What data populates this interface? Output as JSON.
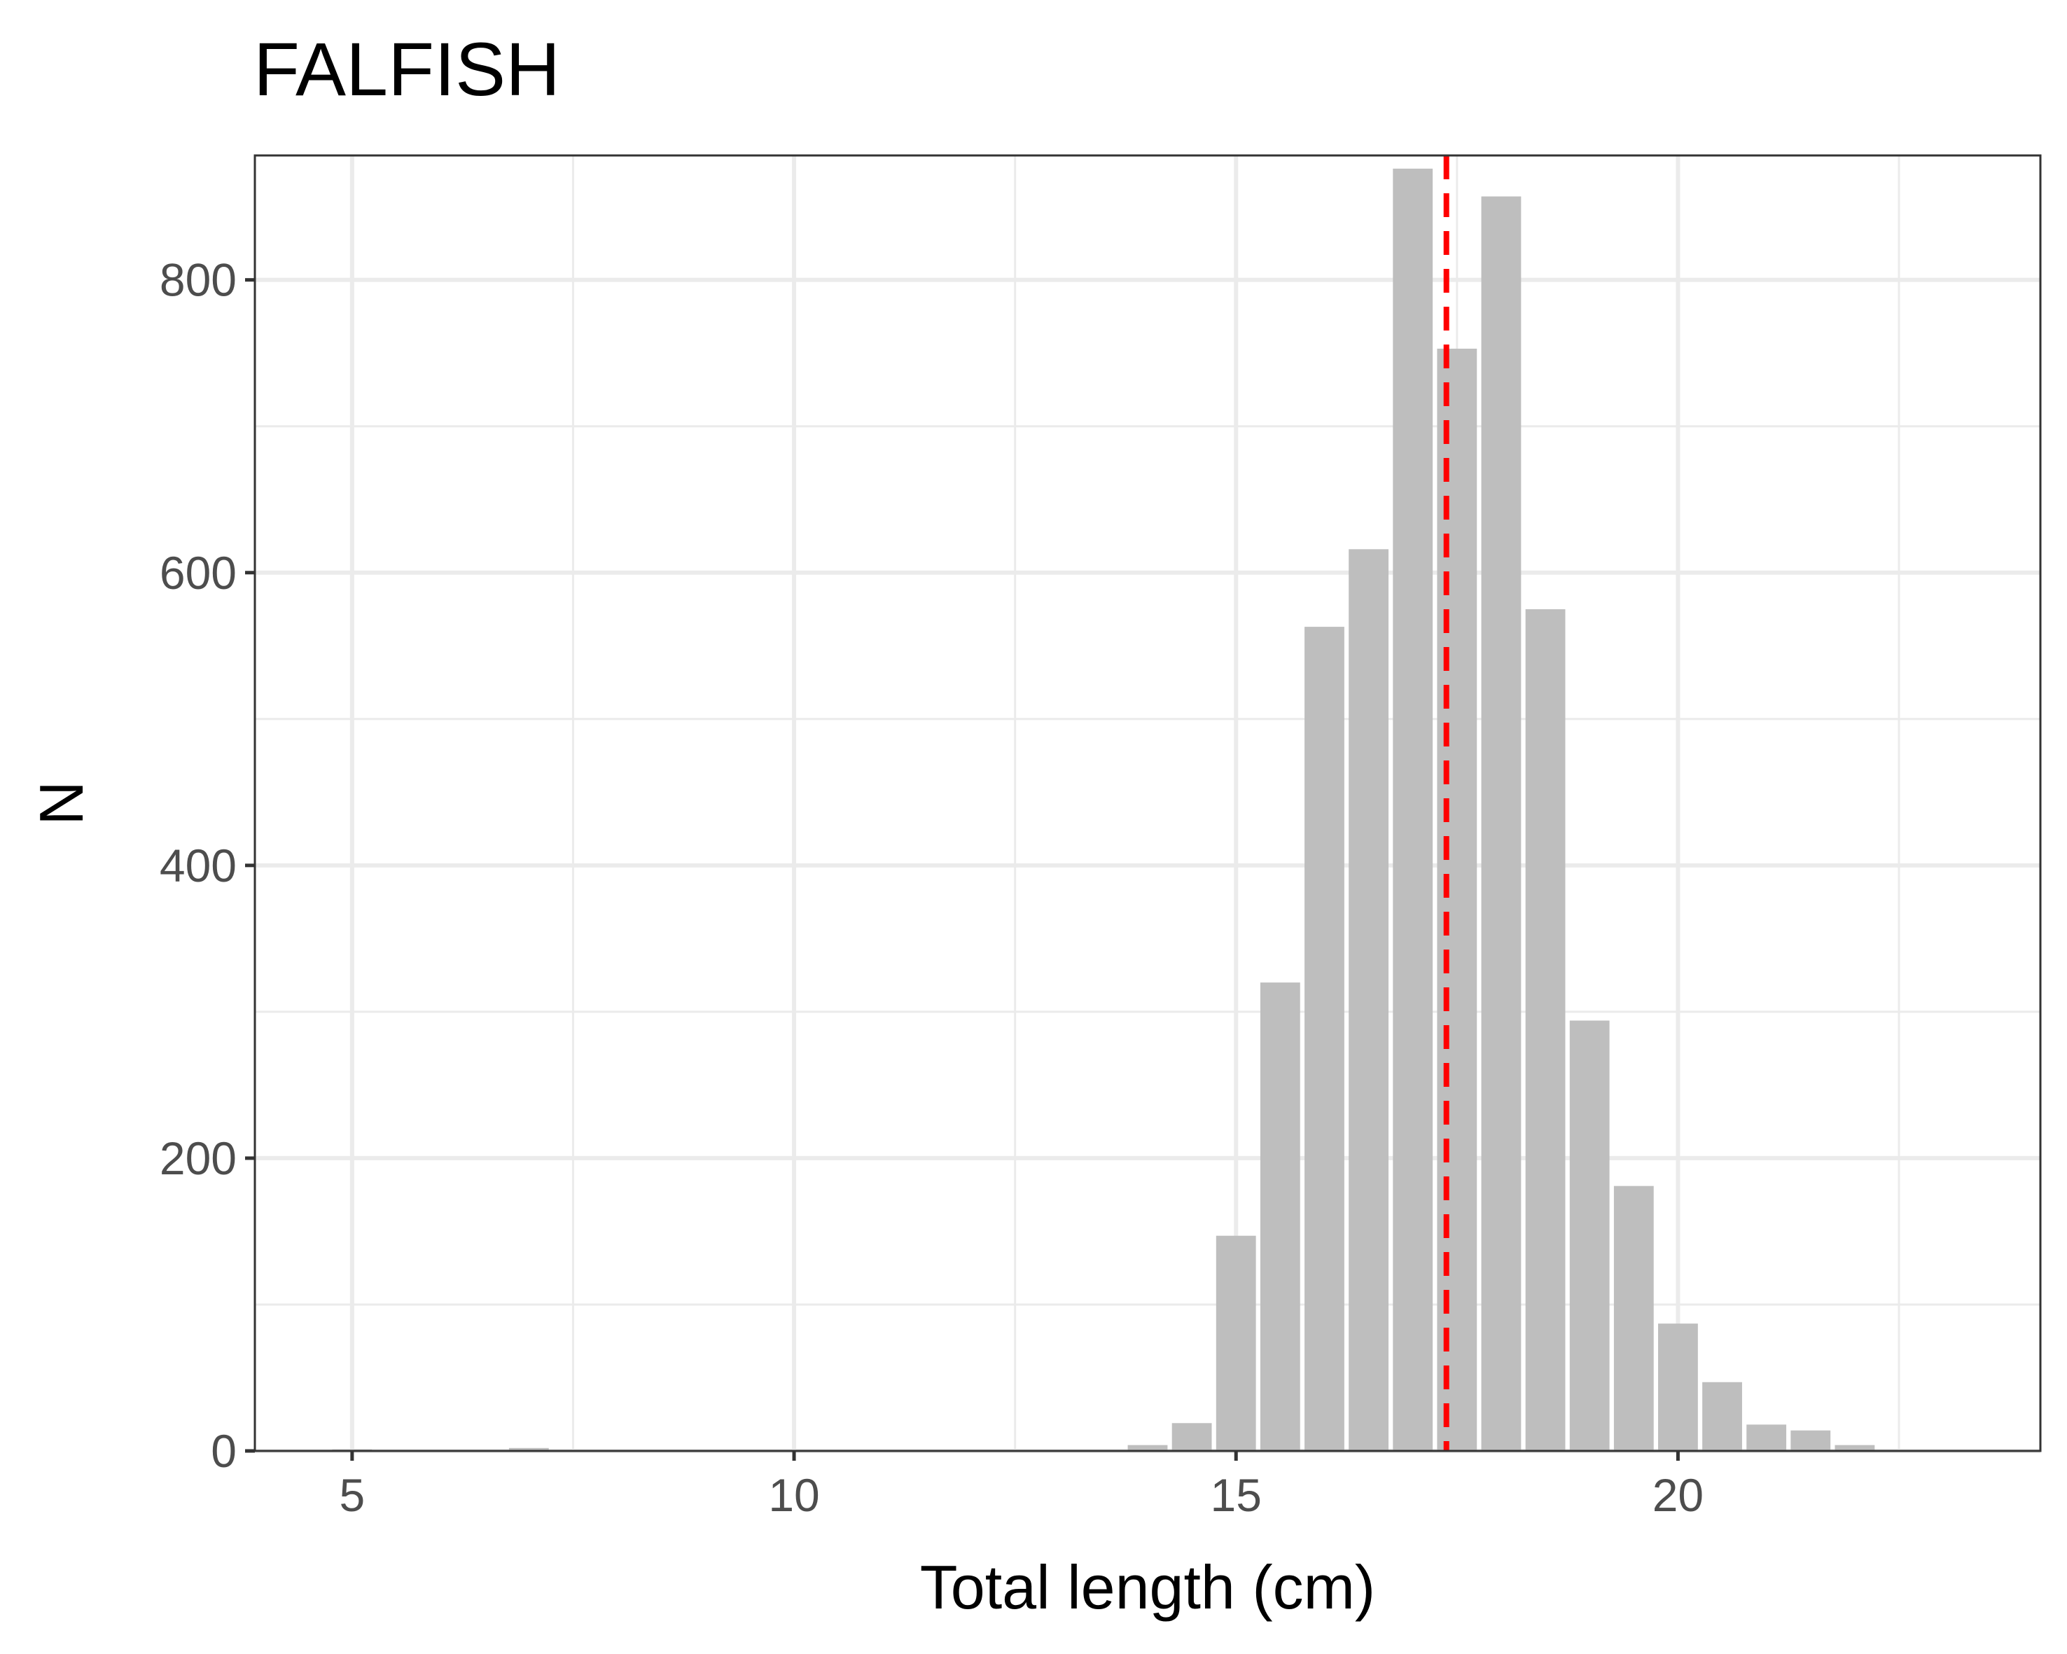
{
  "chart_data": {
    "type": "bar",
    "title": "FALFISH",
    "xlabel": "Total length (cm)",
    "ylabel": "N",
    "xlim": [
      3.9,
      24.1
    ],
    "ylim": [
      0,
      885
    ],
    "x_ticks": [
      5,
      10,
      15,
      20
    ],
    "y_ticks": [
      0,
      200,
      400,
      600,
      800
    ],
    "grid": true,
    "bin_width": 0.5,
    "bars": [
      {
        "x": 5.0,
        "value": 1
      },
      {
        "x": 7.0,
        "value": 2
      },
      {
        "x": 14.0,
        "value": 4
      },
      {
        "x": 14.5,
        "value": 19
      },
      {
        "x": 15.0,
        "value": 147
      },
      {
        "x": 15.5,
        "value": 320
      },
      {
        "x": 16.0,
        "value": 563
      },
      {
        "x": 16.5,
        "value": 616
      },
      {
        "x": 17.0,
        "value": 876
      },
      {
        "x": 17.5,
        "value": 753
      },
      {
        "x": 18.0,
        "value": 857
      },
      {
        "x": 18.5,
        "value": 575
      },
      {
        "x": 19.0,
        "value": 294
      },
      {
        "x": 19.5,
        "value": 181
      },
      {
        "x": 20.0,
        "value": 87
      },
      {
        "x": 20.5,
        "value": 47
      },
      {
        "x": 21.0,
        "value": 18
      },
      {
        "x": 21.5,
        "value": 14
      },
      {
        "x": 22.0,
        "value": 4
      }
    ],
    "mean_line": {
      "x": 17.38,
      "style": "dashed"
    },
    "colors": {
      "bar": "#bebebe",
      "mean_line": "#ff0000",
      "grid": "#ebebeb",
      "panel_border": "#333333",
      "tick_text": "#4d4d4d"
    }
  }
}
